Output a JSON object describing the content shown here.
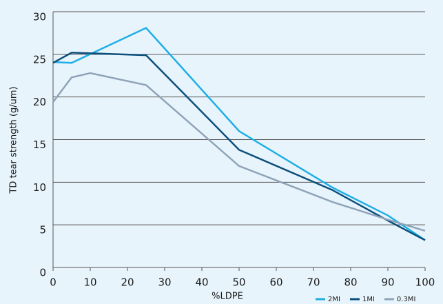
{
  "chart_data": {
    "type": "line",
    "xlabel": "%LDPE",
    "ylabel": "TD tear strength (g/um)",
    "xlim": [
      0,
      100
    ],
    "xticks": [
      0,
      10,
      20,
      30,
      40,
      50,
      60,
      70,
      80,
      90,
      100
    ],
    "ylim": [
      0,
      30
    ],
    "yticks": [
      0,
      5,
      10,
      15,
      20,
      25,
      30
    ],
    "grid": true,
    "legend": "bottom-right",
    "series": [
      {
        "name": "2MI",
        "color": "#1eaee6",
        "x": [
          0,
          5,
          25,
          50,
          75,
          90,
          100
        ],
        "values": [
          24.1,
          24.0,
          28.1,
          16.0,
          9.4,
          6.1,
          3.2
        ]
      },
      {
        "name": "1MI",
        "color": "#0b4f7c",
        "x": [
          0,
          5,
          25,
          50,
          75,
          90,
          100
        ],
        "values": [
          24.0,
          25.2,
          24.9,
          13.8,
          9.1,
          5.5,
          3.2
        ]
      },
      {
        "name": "0.3MI",
        "color": "#8fa3b8",
        "x": [
          0,
          5,
          10,
          25,
          50,
          75,
          90,
          100
        ],
        "values": [
          19.4,
          22.3,
          22.8,
          21.4,
          11.9,
          7.7,
          5.6,
          4.3
        ]
      }
    ]
  }
}
